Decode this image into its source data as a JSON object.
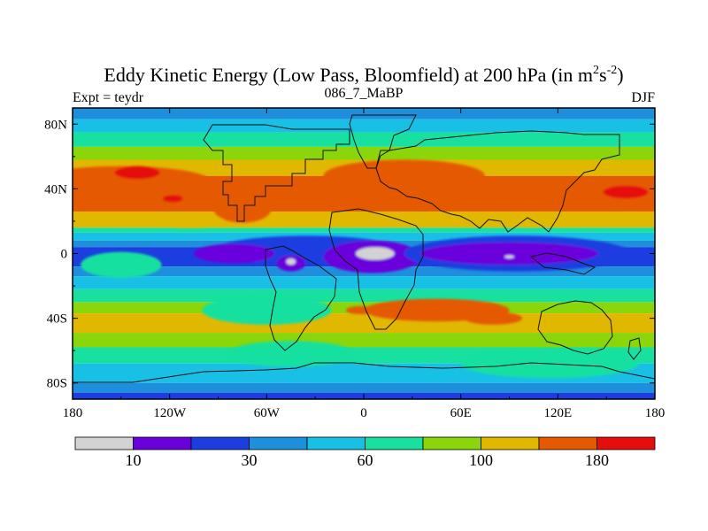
{
  "header": {
    "title": "Eddy Kinetic Energy (Low Pass, Bloomfield) at 200 hPa (in m",
    "title_sup1": "2",
    "title_mid": "s",
    "title_sup2": "-2",
    "title_end": ")",
    "left_label": "Expt = teydr",
    "center_label": "086_7_MaBP",
    "right_label": "DJF"
  },
  "chart_data": {
    "type": "heatmap",
    "title": "Eddy Kinetic Energy (Low Pass, Bloomfield) at 200 hPa (in m^2 s^-2)",
    "subtitle_left": "Expt = teydr",
    "subtitle_center": "086_7_MaBP",
    "subtitle_right": "DJF",
    "xlim": [
      -180,
      180
    ],
    "ylim": [
      -90,
      90
    ],
    "x_ticks": [
      {
        "value": -180,
        "label": "180"
      },
      {
        "value": -120,
        "label": "120W"
      },
      {
        "value": -60,
        "label": "60W"
      },
      {
        "value": 0,
        "label": "0"
      },
      {
        "value": 60,
        "label": "60E"
      },
      {
        "value": 120,
        "label": "120E"
      },
      {
        "value": 180,
        "label": "180"
      }
    ],
    "y_ticks": [
      {
        "value": 80,
        "label": "80N"
      },
      {
        "value": 40,
        "label": "40N"
      },
      {
        "value": 0,
        "label": "0"
      },
      {
        "value": -40,
        "label": "40S"
      },
      {
        "value": -80,
        "label": "80S"
      }
    ],
    "colorbar": {
      "colors": [
        "#d3d3d3",
        "#6a00dc",
        "#1c3ee0",
        "#1e8fdc",
        "#19c0e6",
        "#17e0a0",
        "#8ad60a",
        "#e0b800",
        "#e55a00",
        "#e60d0d"
      ],
      "labels": [
        {
          "after_box": 1,
          "text": "10"
        },
        {
          "after_box": 3,
          "text": "30"
        },
        {
          "after_box": 5,
          "text": "60"
        },
        {
          "after_box": 7,
          "text": "100"
        },
        {
          "after_box": 9,
          "text": "180"
        }
      ]
    },
    "zonal_bands": [
      {
        "lat_from": 90,
        "lat_to": 83,
        "level": 3
      },
      {
        "lat_from": 83,
        "lat_to": 75,
        "level": 4
      },
      {
        "lat_from": 75,
        "lat_to": 66,
        "level": 5
      },
      {
        "lat_from": 66,
        "lat_to": 58,
        "level": 6
      },
      {
        "lat_from": 58,
        "lat_to": 48,
        "level": 7
      },
      {
        "lat_from": 48,
        "lat_to": 26,
        "level": 8
      },
      {
        "lat_from": 26,
        "lat_to": 16,
        "level": 7
      },
      {
        "lat_from": 16,
        "lat_to": 13,
        "level": 5
      },
      {
        "lat_from": 13,
        "lat_to": 8,
        "level": 4
      },
      {
        "lat_from": 8,
        "lat_to": 4,
        "level": 3
      },
      {
        "lat_from": 4,
        "lat_to": -8,
        "level": 2
      },
      {
        "lat_from": -8,
        "lat_to": -14,
        "level": 3
      },
      {
        "lat_from": -14,
        "lat_to": -22,
        "level": 4
      },
      {
        "lat_from": -22,
        "lat_to": -30,
        "level": 5
      },
      {
        "lat_from": -30,
        "lat_to": -37,
        "level": 6
      },
      {
        "lat_from": -37,
        "lat_to": -49,
        "level": 7
      },
      {
        "lat_from": -49,
        "lat_to": -58,
        "level": 6
      },
      {
        "lat_from": -58,
        "lat_to": -68,
        "level": 5
      },
      {
        "lat_from": -68,
        "lat_to": -80,
        "level": 4
      },
      {
        "lat_from": -80,
        "lat_to": -86,
        "level": 3
      },
      {
        "lat_from": -86,
        "lat_to": -90,
        "level": 2
      }
    ],
    "blobs": [
      {
        "lon": -150,
        "lat": 45,
        "rlon": 55,
        "rlat": 9,
        "level": 8
      },
      {
        "lon": -140,
        "lat": 50,
        "rlon": 14,
        "rlat": 4,
        "level": 9
      },
      {
        "lon": -118,
        "lat": 34,
        "rlon": 6,
        "rlat": 2,
        "level": 9
      },
      {
        "lon": -75,
        "lat": 28,
        "rlon": 18,
        "rlat": 9,
        "level": 8
      },
      {
        "lon": 25,
        "lat": 48,
        "rlon": 50,
        "rlat": 10,
        "level": 8
      },
      {
        "lon": 140,
        "lat": 38,
        "rlon": 45,
        "rlat": 9,
        "level": 8
      },
      {
        "lon": 162,
        "lat": 38,
        "rlon": 14,
        "rlat": 4,
        "level": 9
      },
      {
        "lon": -108,
        "lat": 20,
        "rlon": 22,
        "rlat": 4,
        "level": 7
      },
      {
        "lon": -150,
        "lat": -7,
        "rlon": 25,
        "rlat": 8,
        "level": 5
      },
      {
        "lon": -60,
        "lat": -35,
        "rlon": 40,
        "rlat": 9,
        "level": 5
      },
      {
        "lon": -45,
        "lat": -62,
        "rlon": 40,
        "rlat": 8,
        "level": 5
      },
      {
        "lon": 115,
        "lat": -68,
        "rlon": 55,
        "rlat": 9,
        "level": 5
      },
      {
        "lon": 45,
        "lat": -35,
        "rlon": 45,
        "rlat": 7,
        "level": 8
      },
      {
        "lon": 80,
        "lat": -40,
        "rlon": 18,
        "rlat": 4,
        "level": 8
      },
      {
        "lon": -2,
        "lat": -35,
        "rlon": 9,
        "rlat": 2.5,
        "level": 8
      },
      {
        "lon": -35,
        "lat": 2,
        "rlon": 58,
        "rlat": 9,
        "level": 2
      },
      {
        "lon": -80,
        "lat": 0,
        "rlon": 25,
        "rlat": 6,
        "level": 1
      },
      {
        "lon": 5,
        "lat": -2,
        "rlon": 30,
        "rlat": 10,
        "level": 1
      },
      {
        "lon": -45,
        "lat": -6,
        "rlon": 9,
        "rlat": 5,
        "level": 1
      },
      {
        "lon": 95,
        "lat": 0,
        "rlon": 70,
        "rlat": 11,
        "level": 2
      },
      {
        "lon": 90,
        "lat": 0,
        "rlon": 55,
        "rlat": 7,
        "level": 1
      },
      {
        "lon": 7,
        "lat": 0,
        "rlon": 12,
        "rlat": 4,
        "level": 0
      },
      {
        "lon": -45,
        "lat": -5,
        "rlon": 3,
        "rlat": 2,
        "level": 0
      },
      {
        "lon": 90,
        "lat": -2,
        "rlon": 3,
        "rlat": 1,
        "level": 0
      }
    ]
  }
}
